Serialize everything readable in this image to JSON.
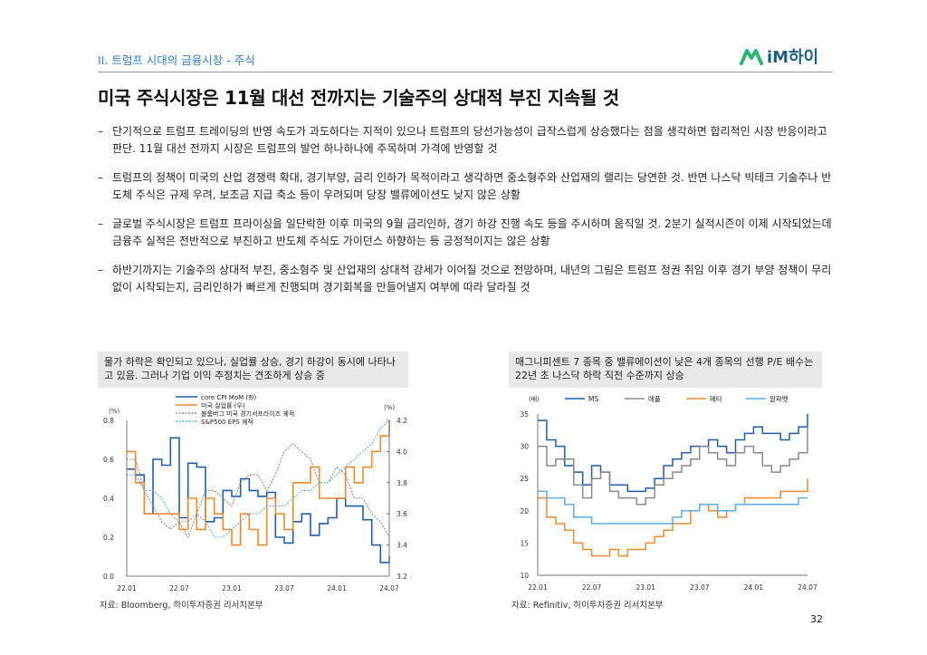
{
  "header": {
    "section_label": "II. 트럼프 시대의 금융시장 - 주식",
    "logo_text": "iM하이",
    "title": "미국 주식시장은 11월 대선 전까지는 기술주의 상대적 부진 지속될 것"
  },
  "bullets": [
    {
      "dash": "–",
      "text": "단기적으로 트럼프 트레이딩의 반영 속도가 과도하다는 지적이 있으나 트럼프의 당선가능성이 급작스럽게 상승했다는 점을 생각하면 합리적인 시장 반응이라고 판단. 11월 대선 전까지 시장은 트럼프의 발언 하나하나에 주목하며 가격에 반영할 것"
    },
    {
      "dash": "–",
      "text": "트럼프의 정책이 미국의 산업 경쟁력 확대, 경기부양, 금리 인하가 목적이라고 생각하면 중소형주와 산업재의 랠리는 당연한 것. 반면 나스닥 빅테크 기술주나 반도체 주식은 규제 우려, 보조금 지급 축소 등이 우려되며 당장 밸류에이션도 낮지 않은 상황"
    },
    {
      "dash": "–",
      "text": "글로벌 주식시장은 트럼프 프라이싱을 일단락한 이후 미국의 9월 금리인하, 경기 하강 진행 속도 등을 주시하며 움직일 것. 2분기 실적시즌이 이제 시작되었는데 금융주 실적은 전반적으로 부진하고 반도체 주식도 가이던스 하향하는 등 긍정적이지는 않은 상황"
    },
    {
      "dash": "–",
      "text": "하반기까지는 기술주의 상대적 부진, 중소형주 및 산업재의 상대적 강세가 이어질 것으로 전망하며, 내년의 그림은 트럼프 정권 취임 이후 경기 부양 정책이 무리없이 시작되는지, 금리인하가 빠르게 진행되며 경기회복을 만들어낼지 여부에 따라 달라질 것"
    }
  ],
  "left_panel": {
    "heading": "물가 하락은 확인되고 있으나, 실업률 상승, 경기 하강이 동시에 나타나고 있음. 그러나 기업 이익 추정치는 견조하게 상승 중",
    "source": "자료: Bloomberg, 하이투자증권 리서치본부"
  },
  "right_panel": {
    "heading": "매그니피센트 7 종목 중 밸류에이션이 낮은 4개 종목의 선행 P/E 배수는 22년 초 나스닥 하락 직전 수준까지 상승",
    "source": "자료: Refinitiv, 하이투자증권 리서치본부"
  },
  "page_number": "32",
  "colors": {
    "accent": "#2f7ec7",
    "blue": "#1f5fb0",
    "orange": "#f08a2c",
    "gray": "#8a8a8a",
    "light_blue": "#5aaee8",
    "logo_green": "#2bb673"
  },
  "chart_data": [
    {
      "type": "line",
      "left_axis_unit": "(%)",
      "right_axis_unit": "(%)",
      "ylim_left": [
        0.0,
        0.8
      ],
      "ylim_right": [
        3.2,
        4.2
      ],
      "yticks_left": [
        "0.0",
        "0.2",
        "0.4",
        "0.6",
        "0.8"
      ],
      "yticks_right": [
        "3.2",
        "3.4",
        "3.6",
        "3.8",
        "4.0",
        "4.2"
      ],
      "xticks": [
        "22.01",
        "22.07",
        "23.01",
        "23.07",
        "24.01",
        "24.07"
      ],
      "x": [
        "22.01",
        "22.02",
        "22.03",
        "22.04",
        "22.05",
        "22.06",
        "22.07",
        "22.08",
        "22.09",
        "22.10",
        "22.11",
        "22.12",
        "23.01",
        "23.02",
        "23.03",
        "23.04",
        "23.05",
        "23.06",
        "23.07",
        "23.08",
        "23.09",
        "23.10",
        "23.11",
        "23.12",
        "24.01",
        "24.02",
        "24.03",
        "24.04",
        "24.05",
        "24.06",
        "24.07"
      ],
      "series": [
        {
          "name": "core CPI MoM (좌)",
          "axis": "left",
          "style": "step",
          "color": "#1f5fb0",
          "values": [
            0.55,
            0.52,
            0.32,
            0.6,
            0.57,
            0.71,
            0.3,
            0.58,
            0.56,
            0.28,
            0.3,
            0.44,
            0.41,
            0.5,
            0.44,
            0.41,
            0.43,
            0.2,
            0.17,
            0.28,
            0.32,
            0.21,
            0.27,
            0.3,
            0.4,
            0.36,
            0.36,
            0.29,
            0.16,
            0.07,
            0.1
          ]
        },
        {
          "name": "미국 실업률 (우)",
          "axis": "right",
          "style": "step",
          "color": "#f08a2c",
          "values": [
            4.0,
            3.8,
            3.6,
            3.6,
            3.6,
            3.6,
            3.5,
            3.7,
            3.5,
            3.7,
            3.6,
            3.5,
            3.4,
            3.6,
            3.5,
            3.4,
            3.7,
            3.6,
            3.5,
            3.8,
            3.8,
            3.9,
            3.7,
            3.7,
            3.7,
            3.9,
            3.8,
            3.9,
            4.0,
            4.1,
            4.2
          ]
        },
        {
          "name": "블룸버그 미국 경기서프라이즈 궤적",
          "axis": "right",
          "style": "dashed",
          "color": "#8a8a8a",
          "values": [
            3.95,
            3.95,
            3.75,
            3.65,
            3.55,
            3.5,
            3.55,
            3.45,
            3.6,
            3.75,
            3.75,
            3.7,
            3.65,
            3.8,
            3.85,
            3.85,
            3.75,
            3.85,
            4.0,
            4.05,
            4.0,
            3.95,
            3.8,
            3.8,
            3.9,
            3.85,
            3.7,
            3.7,
            3.6,
            3.55,
            3.45
          ]
        },
        {
          "name": "S&P500 EPS 궤적",
          "axis": "right",
          "style": "dashed",
          "color": "#5aaee8",
          "values": [
            3.85,
            3.85,
            3.75,
            3.75,
            3.7,
            3.6,
            3.55,
            3.55,
            3.6,
            3.55,
            3.45,
            3.45,
            3.5,
            3.55,
            3.6,
            3.6,
            3.65,
            3.65,
            3.65,
            3.7,
            3.75,
            3.75,
            3.8,
            3.8,
            3.85,
            3.9,
            3.95,
            4.0,
            4.05,
            4.15,
            4.2
          ]
        }
      ],
      "legend_placement": "top"
    },
    {
      "type": "line",
      "left_axis_unit": "(배)",
      "ylim": [
        10,
        35
      ],
      "yticks": [
        "10",
        "15",
        "20",
        "25",
        "30",
        "35"
      ],
      "xticks": [
        "22.01",
        "22.07",
        "23.01",
        "23.07",
        "24.01",
        "24.07"
      ],
      "x": [
        "22.01",
        "22.02",
        "22.03",
        "22.04",
        "22.05",
        "22.06",
        "22.07",
        "22.08",
        "22.09",
        "22.10",
        "22.11",
        "22.12",
        "23.01",
        "23.02",
        "23.03",
        "23.04",
        "23.05",
        "23.06",
        "23.07",
        "23.08",
        "23.09",
        "23.10",
        "23.11",
        "23.12",
        "24.01",
        "24.02",
        "24.03",
        "24.04",
        "24.05",
        "24.06",
        "24.07"
      ],
      "series": [
        {
          "name": "MS",
          "color": "#1f5fb0",
          "values": [
            34,
            31,
            30,
            27,
            26,
            24,
            27,
            26,
            24,
            24,
            23,
            23,
            23.5,
            25,
            27,
            28,
            29,
            30,
            30,
            31,
            30,
            29,
            31,
            32,
            33,
            32,
            32,
            31,
            32,
            33,
            35
          ]
        },
        {
          "name": "애플",
          "color": "#8a8a8a",
          "values": [
            30,
            27,
            28,
            28,
            24,
            22,
            25,
            26,
            23,
            22,
            22,
            21,
            22,
            24,
            25,
            26,
            27,
            28,
            30,
            29,
            28,
            27,
            29,
            30,
            29,
            27,
            26,
            27,
            28,
            29,
            33
          ]
        },
        {
          "name": "메타",
          "color": "#f08a2c",
          "values": [
            22,
            19,
            18,
            17,
            15,
            14,
            13,
            13,
            14,
            13,
            14,
            14,
            15,
            16,
            17,
            18,
            18,
            20,
            21,
            20,
            19,
            20,
            21,
            22,
            22,
            22,
            22,
            23,
            23,
            23,
            25
          ]
        },
        {
          "name": "알파벳",
          "color": "#5aaee8",
          "values": [
            23,
            22,
            22,
            21,
            19,
            19,
            18,
            18,
            18,
            18,
            18,
            18,
            18,
            18,
            18,
            19,
            20,
            20,
            21,
            21,
            20,
            20,
            21,
            21,
            21,
            21,
            21,
            21,
            21,
            22,
            22
          ]
        }
      ],
      "legend_placement": "top"
    }
  ]
}
